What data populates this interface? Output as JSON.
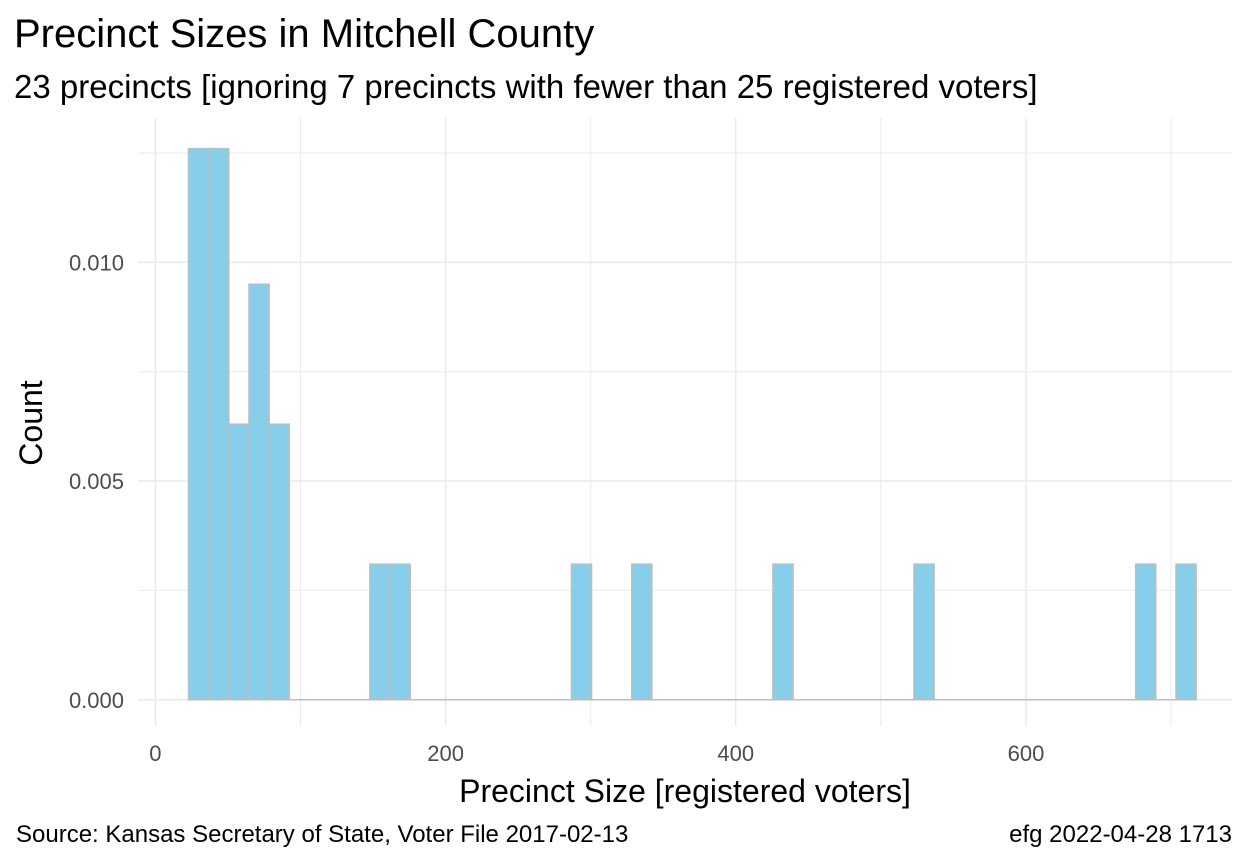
{
  "chart_data": {
    "type": "bar",
    "title": "Precinct Sizes in Mitchell County",
    "subtitle": "23 precincts [ignoring 7 precincts with fewer than 25 registered voters]",
    "xlabel": "Precinct Size [registered voters]",
    "ylabel": "Count",
    "xlim": [
      -12,
      742
    ],
    "ylim": [
      -0.0006,
      0.0133
    ],
    "x_ticks": [
      0,
      200,
      400,
      600
    ],
    "x_tick_labels": [
      "0",
      "200",
      "400",
      "600"
    ],
    "y_ticks": [
      0.0,
      0.005,
      0.01
    ],
    "y_tick_labels": [
      "0.000",
      "0.005",
      "0.010"
    ],
    "grid": true,
    "legend": "none",
    "bin_width": 13.9,
    "bins": [
      {
        "x0": 22.8,
        "x1": 36.7,
        "density": 0.0126
      },
      {
        "x0": 36.7,
        "x1": 50.6,
        "density": 0.0126
      },
      {
        "x0": 50.6,
        "x1": 64.5,
        "density": 0.0063
      },
      {
        "x0": 64.5,
        "x1": 78.4,
        "density": 0.0095
      },
      {
        "x0": 78.4,
        "x1": 92.3,
        "density": 0.0063
      },
      {
        "x0": 147.8,
        "x1": 161.7,
        "density": 0.0031
      },
      {
        "x0": 161.7,
        "x1": 175.6,
        "density": 0.0031
      },
      {
        "x0": 286.7,
        "x1": 300.6,
        "density": 0.0031
      },
      {
        "x0": 328.3,
        "x1": 342.2,
        "density": 0.0031
      },
      {
        "x0": 425.6,
        "x1": 439.5,
        "density": 0.0031
      },
      {
        "x0": 522.8,
        "x1": 536.7,
        "density": 0.0031
      },
      {
        "x0": 675.6,
        "x1": 689.5,
        "density": 0.0031
      },
      {
        "x0": 703.4,
        "x1": 717.3,
        "density": 0.0031
      }
    ],
    "baseline_range": [
      22.8,
      717.3
    ],
    "bar_fill": "#87ceeb",
    "bar_stroke": "#bebebe",
    "grid_color": "#ebebeb"
  },
  "caption": {
    "left": "Source:  Kansas Secretary of State, Voter File  2017-02-13",
    "right": "efg 2022-04-28 1713"
  }
}
